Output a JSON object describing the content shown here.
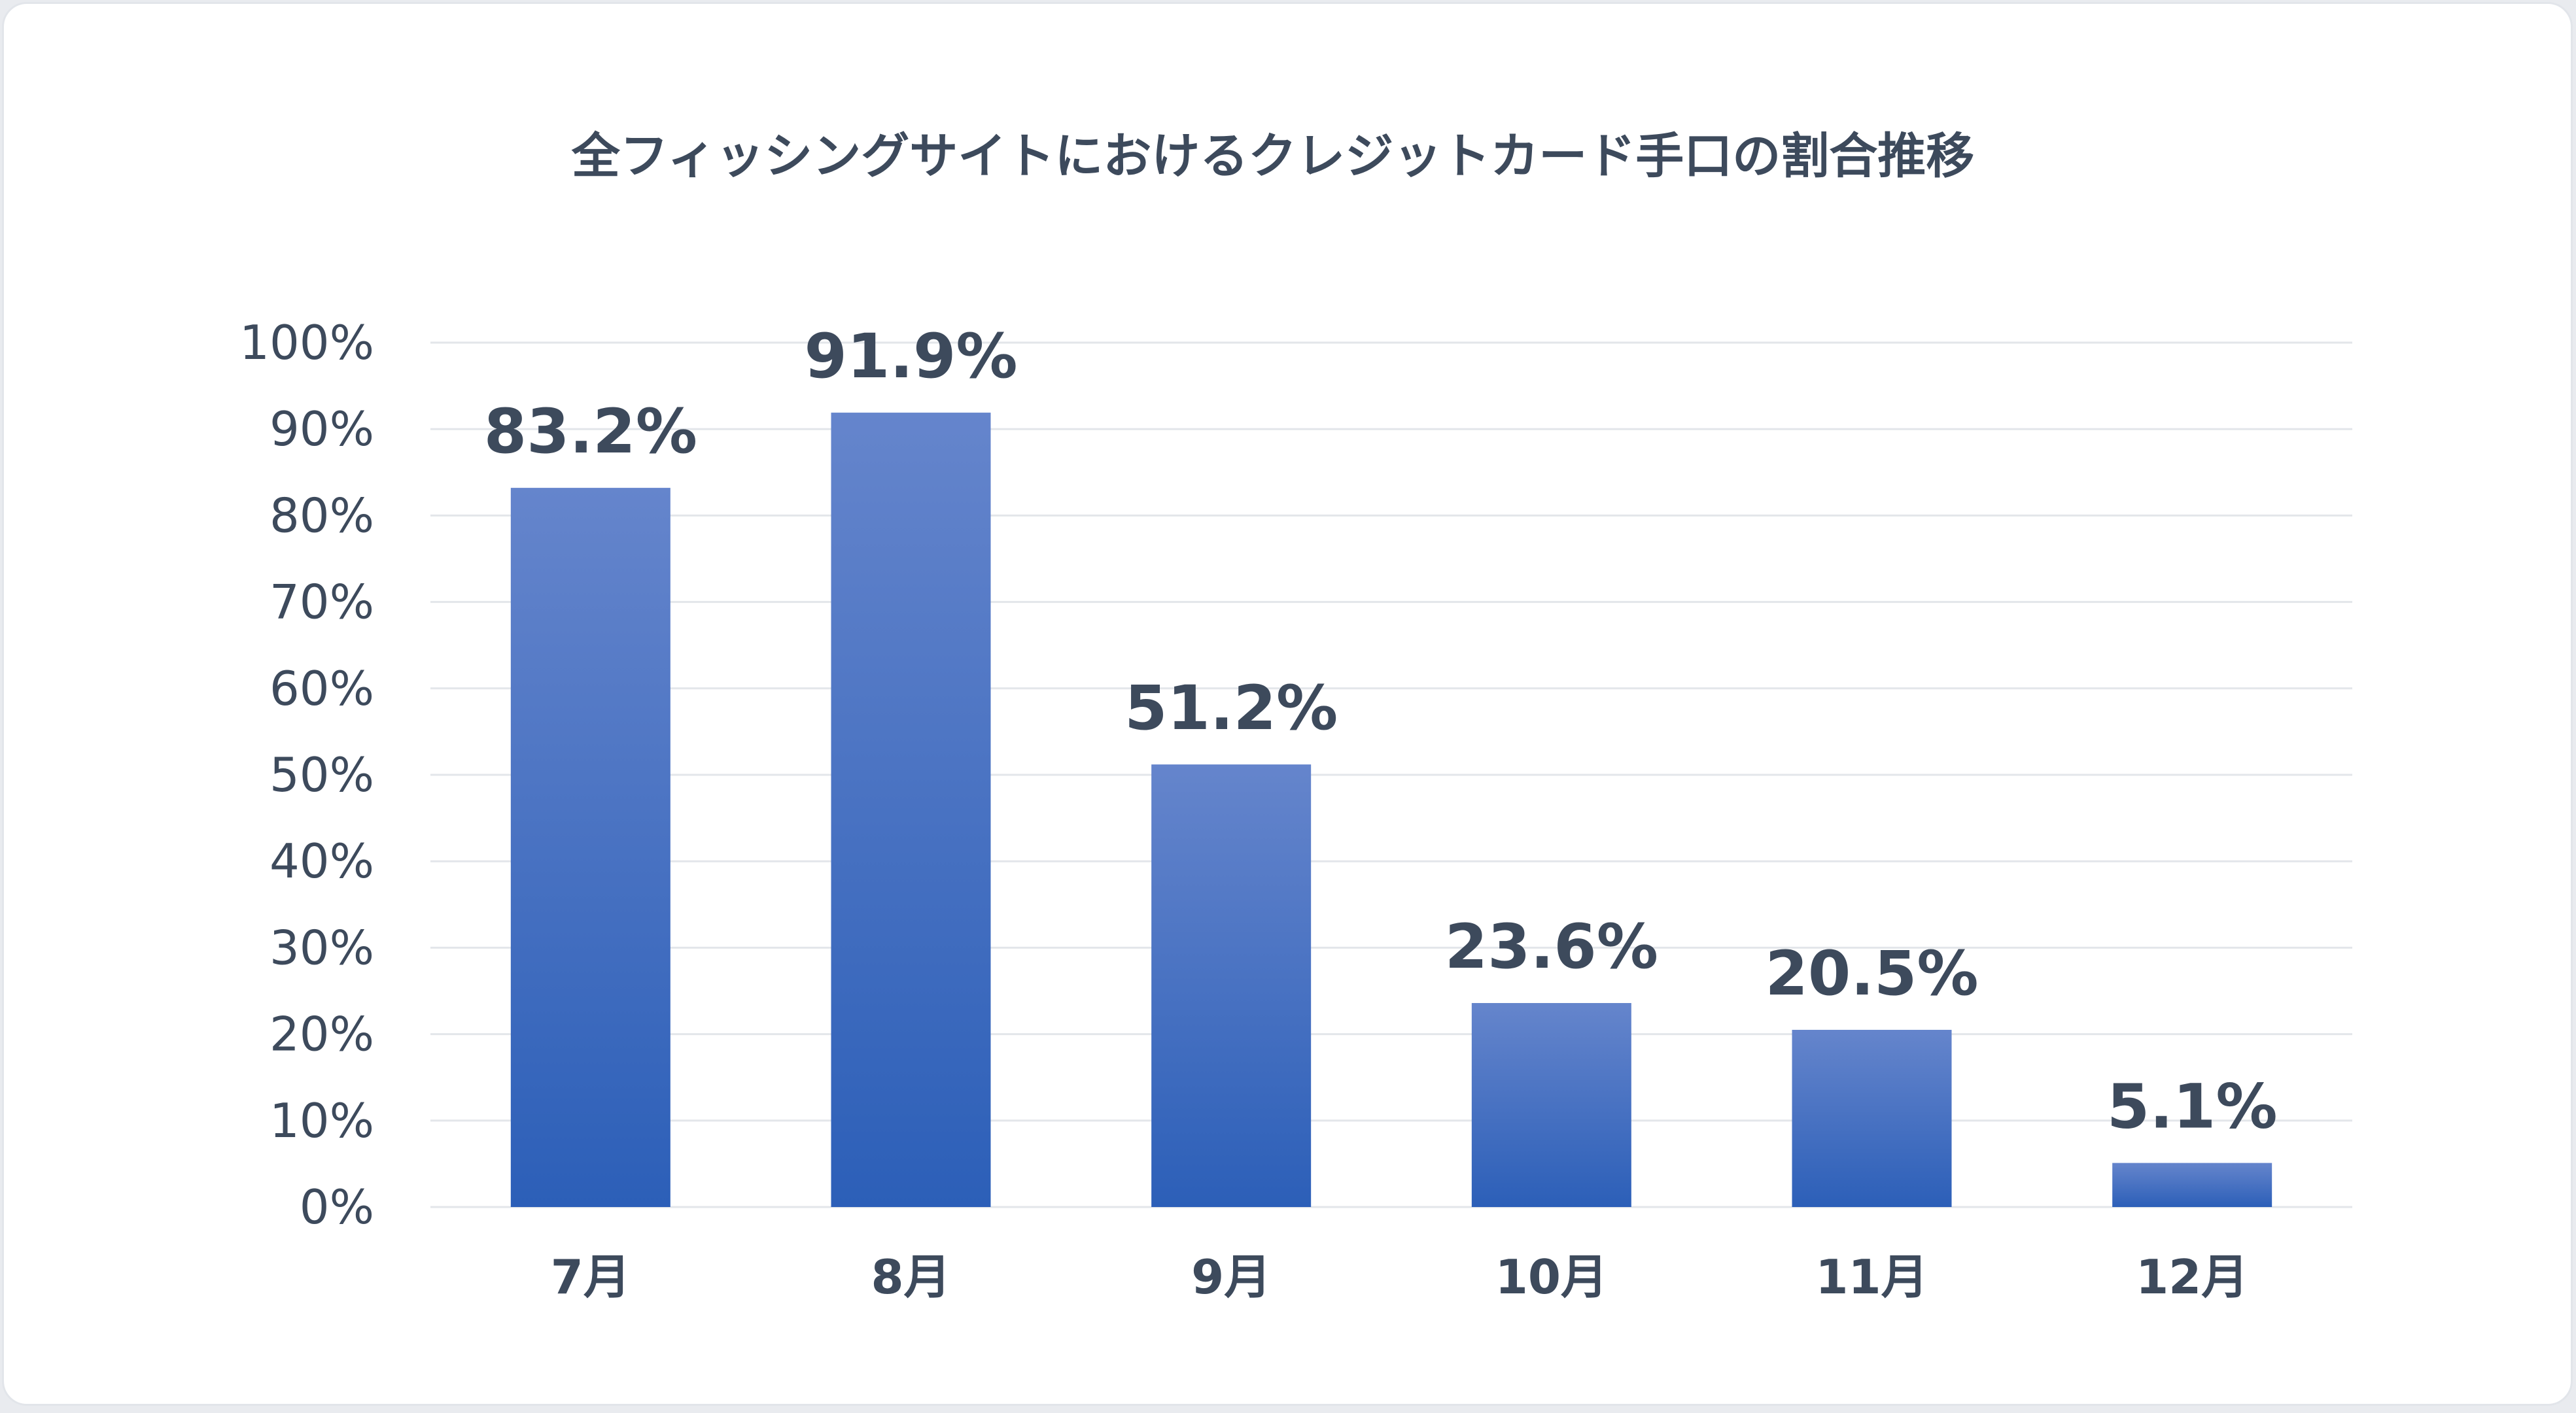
{
  "colors": {
    "bar_top": "#6585cc",
    "bar_bottom": "#2c5fb8",
    "text": "#3d4a5c",
    "grid": "#e3e6ea"
  },
  "chart_data": {
    "type": "bar",
    "title": "全フィッシングサイトにおけるクレジットカード手口の割合推移",
    "categories": [
      "7月",
      "8月",
      "9月",
      "10月",
      "11月",
      "12月"
    ],
    "values": [
      83.2,
      91.9,
      51.2,
      23.6,
      20.5,
      5.1
    ],
    "data_labels": [
      "83.2%",
      "91.9%",
      "51.2%",
      "23.6%",
      "20.5%",
      "5.1%"
    ],
    "yticks": [
      "0%",
      "10%",
      "20%",
      "30%",
      "40%",
      "50%",
      "60%",
      "70%",
      "80%",
      "90%",
      "100%"
    ],
    "ylim": [
      0,
      100
    ],
    "xlabel": "",
    "ylabel": "",
    "grid": true,
    "legend": "none"
  }
}
